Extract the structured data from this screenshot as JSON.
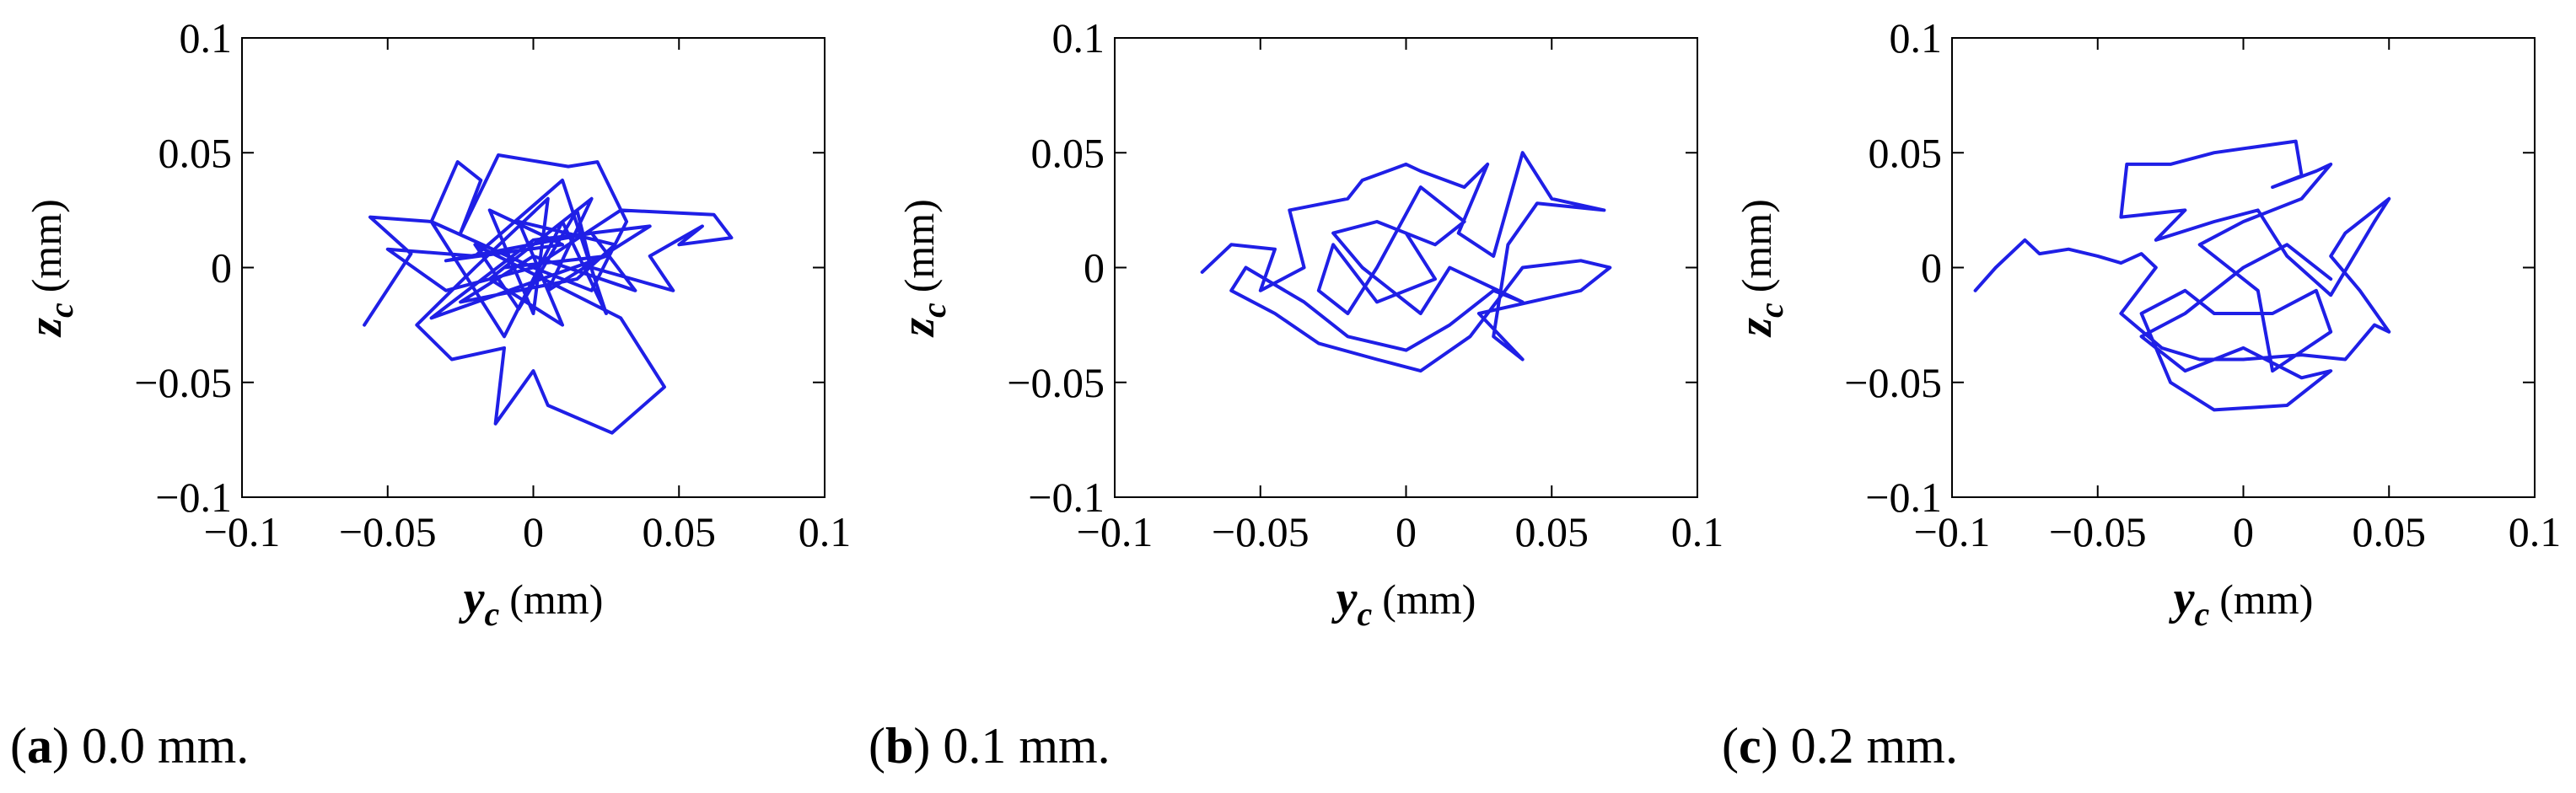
{
  "chart_data": [
    {
      "type": "line",
      "caption_letter": "a",
      "caption_text": "0.0 mm.",
      "xlabel": {
        "var": "y",
        "sub": "c",
        "unit": "(mm)"
      },
      "ylabel": {
        "var": "z",
        "sub": "c",
        "unit": "(mm)"
      },
      "xlim": [
        -0.1,
        0.1
      ],
      "ylim": [
        -0.1,
        0.1
      ],
      "xticks": [
        -0.1,
        -0.05,
        0,
        0.05,
        0.1
      ],
      "yticks": [
        -0.1,
        -0.05,
        0,
        0.05,
        0.1
      ],
      "xtick_labels": [
        "−0.1",
        "−0.05",
        "0",
        "0.05",
        "0.1"
      ],
      "ytick_labels": [
        "−0.1",
        "−0.05",
        "0",
        "0.05",
        "0.1"
      ],
      "grid": false,
      "line_color": "#1f1fe6",
      "series": [
        {
          "points": [
            [
              -0.058,
              -0.025
            ],
            [
              -0.042,
              0.006
            ],
            [
              -0.056,
              0.022
            ],
            [
              -0.035,
              0.02
            ],
            [
              -0.026,
              0.046
            ],
            [
              -0.018,
              0.038
            ],
            [
              -0.025,
              0.015
            ],
            [
              -0.012,
              0.049
            ],
            [
              0.012,
              0.044
            ],
            [
              0.022,
              0.046
            ],
            [
              0.032,
              0.02
            ],
            [
              0.02,
              -0.01
            ],
            [
              0.0,
              0.0
            ],
            [
              -0.03,
              -0.01
            ],
            [
              -0.05,
              0.008
            ],
            [
              -0.02,
              0.005
            ],
            [
              0.01,
              0.038
            ],
            [
              0.025,
              -0.02
            ],
            [
              0.01,
              0.02
            ],
            [
              -0.01,
              -0.03
            ],
            [
              -0.035,
              0.02
            ],
            [
              0.0,
              0.0
            ],
            [
              0.03,
              0.025
            ],
            [
              0.062,
              0.023
            ],
            [
              0.068,
              0.013
            ],
            [
              0.05,
              0.01
            ],
            [
              0.058,
              0.018
            ],
            [
              0.04,
              0.005
            ],
            [
              0.048,
              -0.01
            ],
            [
              0.02,
              0.0
            ],
            [
              0.015,
              0.025
            ],
            [
              -0.005,
              -0.018
            ],
            [
              -0.02,
              0.01
            ],
            [
              0.03,
              -0.022
            ],
            [
              0.045,
              -0.052
            ],
            [
              0.027,
              -0.072
            ],
            [
              0.005,
              -0.06
            ],
            [
              0.0,
              -0.045
            ],
            [
              -0.013,
              -0.068
            ],
            [
              -0.01,
              -0.035
            ],
            [
              -0.028,
              -0.04
            ],
            [
              -0.04,
              -0.025
            ],
            [
              -0.02,
              0.0
            ],
            [
              0.005,
              0.03
            ],
            [
              0.0,
              -0.02
            ],
            [
              -0.015,
              0.025
            ],
            [
              0.01,
              0.01
            ],
            [
              -0.03,
              0.003
            ],
            [
              0.02,
              0.015
            ],
            [
              0.035,
              -0.01
            ],
            [
              0.0,
              0.005
            ],
            [
              -0.025,
              -0.015
            ],
            [
              0.015,
              -0.005
            ],
            [
              0.028,
              0.01
            ],
            [
              -0.005,
              0.02
            ],
            [
              0.01,
              -0.025
            ],
            [
              -0.015,
              -0.005
            ],
            [
              0.02,
              0.03
            ],
            [
              0.005,
              -0.01
            ],
            [
              0.04,
              0.018
            ],
            [
              0.0,
              0.012
            ],
            [
              -0.035,
              -0.022
            ],
            [
              0.025,
              0.005
            ],
            [
              -0.01,
              0.0
            ]
          ]
        }
      ]
    },
    {
      "type": "line",
      "caption_letter": "b",
      "caption_text": "0.1 mm.",
      "xlabel": {
        "var": "y",
        "sub": "c",
        "unit": "(mm)"
      },
      "ylabel": {
        "var": "z",
        "sub": "c",
        "unit": "(mm)"
      },
      "xlim": [
        -0.1,
        0.1
      ],
      "ylim": [
        -0.1,
        0.1
      ],
      "xticks": [
        -0.1,
        -0.05,
        0,
        0.05,
        0.1
      ],
      "yticks": [
        -0.1,
        -0.05,
        0,
        0.05,
        0.1
      ],
      "xtick_labels": [
        "−0.1",
        "−0.05",
        "0",
        "0.05",
        "0.1"
      ],
      "ytick_labels": [
        "−0.1",
        "−0.05",
        "0",
        "0.05",
        "0.1"
      ],
      "grid": false,
      "line_color": "#1f1fe6",
      "series": [
        {
          "points": [
            [
              -0.07,
              -0.002
            ],
            [
              -0.06,
              0.01
            ],
            [
              -0.045,
              0.008
            ],
            [
              -0.05,
              -0.01
            ],
            [
              -0.035,
              0.0
            ],
            [
              -0.04,
              0.025
            ],
            [
              -0.02,
              0.03
            ],
            [
              -0.015,
              0.038
            ],
            [
              0.0,
              0.045
            ],
            [
              0.005,
              0.042
            ],
            [
              0.02,
              0.035
            ],
            [
              0.028,
              0.045
            ],
            [
              0.018,
              0.015
            ],
            [
              0.03,
              0.005
            ],
            [
              0.04,
              0.05
            ],
            [
              0.05,
              0.03
            ],
            [
              0.068,
              0.025
            ],
            [
              0.045,
              0.028
            ],
            [
              0.035,
              0.01
            ],
            [
              0.03,
              -0.03
            ],
            [
              0.04,
              -0.04
            ],
            [
              0.025,
              -0.02
            ],
            [
              0.06,
              -0.01
            ],
            [
              0.07,
              0.0
            ],
            [
              0.06,
              0.003
            ],
            [
              0.04,
              0.0
            ],
            [
              0.022,
              -0.03
            ],
            [
              0.005,
              -0.045
            ],
            [
              -0.01,
              -0.04
            ],
            [
              -0.03,
              -0.033
            ],
            [
              -0.045,
              -0.02
            ],
            [
              -0.06,
              -0.01
            ],
            [
              -0.055,
              0.0
            ],
            [
              -0.035,
              -0.015
            ],
            [
              -0.02,
              -0.03
            ],
            [
              0.0,
              -0.036
            ],
            [
              0.015,
              -0.025
            ],
            [
              0.03,
              -0.01
            ],
            [
              0.04,
              -0.015
            ],
            [
              0.015,
              0.0
            ],
            [
              0.005,
              -0.02
            ],
            [
              -0.015,
              0.0
            ],
            [
              -0.025,
              0.015
            ],
            [
              -0.01,
              0.02
            ],
            [
              0.01,
              0.01
            ],
            [
              0.02,
              0.02
            ],
            [
              0.005,
              0.035
            ],
            [
              -0.01,
              0.0
            ],
            [
              -0.02,
              -0.02
            ],
            [
              -0.03,
              -0.01
            ],
            [
              -0.025,
              0.01
            ],
            [
              -0.01,
              -0.015
            ],
            [
              0.01,
              -0.005
            ],
            [
              0.0,
              0.015
            ]
          ]
        }
      ]
    },
    {
      "type": "line",
      "caption_letter": "c",
      "caption_text": "0.2 mm.",
      "xlabel": {
        "var": "y",
        "sub": "c",
        "unit": "(mm)"
      },
      "ylabel": {
        "var": "z",
        "sub": "c",
        "unit": "(mm)"
      },
      "xlim": [
        -0.1,
        0.1
      ],
      "ylim": [
        -0.1,
        0.1
      ],
      "xticks": [
        -0.1,
        -0.05,
        0,
        0.05,
        0.1
      ],
      "yticks": [
        -0.1,
        -0.05,
        0,
        0.05,
        0.1
      ],
      "xtick_labels": [
        "−0.1",
        "−0.05",
        "0",
        "0.05",
        "0.1"
      ],
      "ytick_labels": [
        "−0.1",
        "−0.05",
        "0",
        "0.05",
        "0.1"
      ],
      "grid": false,
      "line_color": "#1f1fe6",
      "series": [
        {
          "points": [
            [
              -0.092,
              -0.01
            ],
            [
              -0.085,
              0.0
            ],
            [
              -0.075,
              0.012
            ],
            [
              -0.07,
              0.006
            ],
            [
              -0.06,
              0.008
            ],
            [
              -0.05,
              0.005
            ],
            [
              -0.042,
              0.002
            ],
            [
              -0.035,
              0.006
            ],
            [
              -0.03,
              0.0
            ],
            [
              -0.042,
              -0.02
            ],
            [
              -0.028,
              -0.035
            ],
            [
              -0.015,
              -0.04
            ],
            [
              0.0,
              -0.04
            ],
            [
              0.02,
              -0.038
            ],
            [
              0.035,
              -0.04
            ],
            [
              0.045,
              -0.025
            ],
            [
              0.05,
              -0.028
            ],
            [
              0.04,
              -0.01
            ],
            [
              0.03,
              0.005
            ],
            [
              0.035,
              0.015
            ],
            [
              0.05,
              0.03
            ],
            [
              0.045,
              0.02
            ],
            [
              0.03,
              -0.012
            ],
            [
              0.015,
              0.005
            ],
            [
              0.005,
              0.025
            ],
            [
              -0.01,
              0.02
            ],
            [
              -0.03,
              0.012
            ],
            [
              -0.02,
              0.025
            ],
            [
              -0.042,
              0.022
            ],
            [
              -0.04,
              0.045
            ],
            [
              -0.025,
              0.045
            ],
            [
              -0.01,
              0.05
            ],
            [
              0.018,
              0.055
            ],
            [
              0.02,
              0.04
            ],
            [
              0.01,
              0.035
            ],
            [
              0.025,
              0.042
            ],
            [
              0.03,
              0.045
            ],
            [
              0.02,
              0.03
            ],
            [
              0.0,
              0.02
            ],
            [
              -0.015,
              0.01
            ],
            [
              0.005,
              -0.01
            ],
            [
              0.01,
              -0.045
            ],
            [
              0.03,
              -0.028
            ],
            [
              0.025,
              -0.01
            ],
            [
              0.01,
              -0.02
            ],
            [
              -0.01,
              -0.02
            ],
            [
              -0.02,
              -0.01
            ],
            [
              -0.035,
              -0.02
            ],
            [
              -0.025,
              -0.05
            ],
            [
              -0.01,
              -0.062
            ],
            [
              0.015,
              -0.06
            ],
            [
              0.03,
              -0.045
            ],
            [
              0.02,
              -0.048
            ],
            [
              0.0,
              -0.035
            ],
            [
              -0.02,
              -0.045
            ],
            [
              -0.035,
              -0.03
            ],
            [
              -0.02,
              -0.02
            ],
            [
              0.0,
              0.0
            ],
            [
              0.015,
              0.01
            ],
            [
              0.03,
              -0.005
            ]
          ]
        }
      ]
    }
  ]
}
